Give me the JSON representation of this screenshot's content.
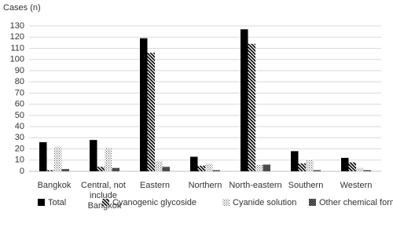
{
  "chart_data": {
    "type": "bar",
    "y_label": "Cases (n)",
    "categories": [
      "Bangkok",
      "Central, not include Bangkok",
      "Eastern",
      "Northern",
      "North-eastern",
      "Southern",
      "Western"
    ],
    "series": [
      {
        "name": "Total",
        "color": "#000000",
        "pattern": "solid",
        "values": [
          26,
          28,
          119,
          13,
          127,
          18,
          12
        ]
      },
      {
        "name": "Cyanogenic glycoside",
        "color": "#000000",
        "pattern": "diagonal",
        "values": [
          1,
          4,
          106,
          5,
          114,
          7,
          8
        ]
      },
      {
        "name": "Cyanide solution",
        "color": "#000000",
        "pattern": "dots",
        "values": [
          22,
          21,
          9,
          7,
          6,
          10,
          3
        ]
      },
      {
        "name": "Other chemical form",
        "color": "#000000",
        "pattern": "checker",
        "values": [
          2,
          3,
          4,
          1,
          6,
          1,
          1
        ]
      }
    ],
    "ylim": [
      0,
      130
    ],
    "yticks": [
      0,
      10,
      20,
      30,
      40,
      50,
      60,
      70,
      80,
      90,
      100,
      110,
      120,
      130
    ],
    "grid": true,
    "legend": "bottom"
  }
}
